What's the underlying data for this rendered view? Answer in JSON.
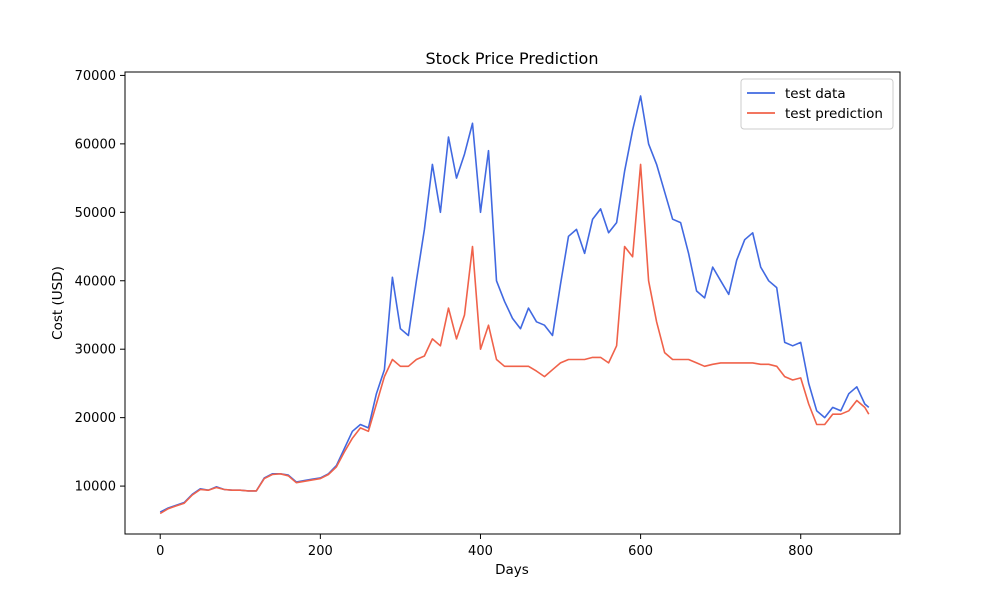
{
  "chart_data": {
    "type": "line",
    "title": "Stock Price Prediction",
    "xlabel": "Days",
    "ylabel": "Cost (USD)",
    "xlim": [
      -44,
      924
    ],
    "ylim": [
      3000,
      70500
    ],
    "xticks": [
      0,
      200,
      400,
      600,
      800
    ],
    "yticks": [
      10000,
      20000,
      30000,
      40000,
      50000,
      60000,
      70000
    ],
    "grid": false,
    "legend_position": "top-right",
    "series": [
      {
        "name": "test data",
        "color": "#4169e1",
        "points": [
          [
            0,
            6200
          ],
          [
            10,
            6800
          ],
          [
            20,
            7200
          ],
          [
            30,
            7600
          ],
          [
            40,
            8800
          ],
          [
            50,
            9600
          ],
          [
            60,
            9400
          ],
          [
            70,
            9900
          ],
          [
            80,
            9500
          ],
          [
            90,
            9400
          ],
          [
            100,
            9400
          ],
          [
            110,
            9300
          ],
          [
            120,
            9300
          ],
          [
            130,
            11200
          ],
          [
            140,
            11800
          ],
          [
            150,
            11800
          ],
          [
            160,
            11600
          ],
          [
            170,
            10600
          ],
          [
            180,
            10800
          ],
          [
            190,
            11000
          ],
          [
            200,
            11200
          ],
          [
            210,
            11800
          ],
          [
            220,
            13000
          ],
          [
            230,
            15500
          ],
          [
            240,
            18000
          ],
          [
            250,
            19000
          ],
          [
            260,
            18500
          ],
          [
            270,
            23500
          ],
          [
            280,
            27000
          ],
          [
            290,
            40500
          ],
          [
            300,
            33000
          ],
          [
            310,
            32000
          ],
          [
            320,
            40000
          ],
          [
            330,
            47500
          ],
          [
            340,
            57000
          ],
          [
            350,
            50000
          ],
          [
            360,
            61000
          ],
          [
            370,
            55000
          ],
          [
            380,
            58500
          ],
          [
            390,
            63000
          ],
          [
            400,
            50000
          ],
          [
            410,
            59000
          ],
          [
            420,
            40000
          ],
          [
            430,
            37000
          ],
          [
            440,
            34500
          ],
          [
            450,
            33000
          ],
          [
            460,
            36000
          ],
          [
            470,
            34000
          ],
          [
            480,
            33500
          ],
          [
            490,
            32000
          ],
          [
            500,
            39500
          ],
          [
            510,
            46500
          ],
          [
            520,
            47500
          ],
          [
            530,
            44000
          ],
          [
            540,
            49000
          ],
          [
            550,
            50500
          ],
          [
            560,
            47000
          ],
          [
            570,
            48500
          ],
          [
            580,
            56000
          ],
          [
            590,
            62000
          ],
          [
            600,
            67000
          ],
          [
            610,
            60000
          ],
          [
            620,
            57000
          ],
          [
            630,
            53000
          ],
          [
            640,
            49000
          ],
          [
            650,
            48500
          ],
          [
            660,
            44000
          ],
          [
            670,
            38500
          ],
          [
            680,
            37500
          ],
          [
            690,
            42000
          ],
          [
            700,
            40000
          ],
          [
            710,
            38000
          ],
          [
            720,
            43000
          ],
          [
            730,
            46000
          ],
          [
            740,
            47000
          ],
          [
            750,
            42000
          ],
          [
            760,
            40000
          ],
          [
            770,
            39000
          ],
          [
            780,
            31000
          ],
          [
            790,
            30500
          ],
          [
            800,
            31000
          ],
          [
            810,
            25000
          ],
          [
            820,
            21000
          ],
          [
            830,
            20000
          ],
          [
            840,
            21500
          ],
          [
            850,
            21000
          ],
          [
            860,
            23500
          ],
          [
            870,
            24500
          ],
          [
            880,
            22000
          ],
          [
            885,
            21500
          ]
        ]
      },
      {
        "name": "test prediction",
        "color": "#f0624a",
        "points": [
          [
            0,
            6000
          ],
          [
            10,
            6700
          ],
          [
            20,
            7100
          ],
          [
            30,
            7500
          ],
          [
            40,
            8700
          ],
          [
            50,
            9500
          ],
          [
            60,
            9400
          ],
          [
            70,
            9800
          ],
          [
            80,
            9500
          ],
          [
            90,
            9400
          ],
          [
            100,
            9400
          ],
          [
            110,
            9300
          ],
          [
            120,
            9300
          ],
          [
            130,
            11100
          ],
          [
            140,
            11700
          ],
          [
            150,
            11800
          ],
          [
            160,
            11500
          ],
          [
            170,
            10500
          ],
          [
            180,
            10700
          ],
          [
            190,
            10900
          ],
          [
            200,
            11100
          ],
          [
            210,
            11700
          ],
          [
            220,
            12800
          ],
          [
            230,
            15000
          ],
          [
            240,
            17000
          ],
          [
            250,
            18500
          ],
          [
            260,
            18000
          ],
          [
            270,
            22000
          ],
          [
            280,
            26000
          ],
          [
            290,
            28500
          ],
          [
            300,
            27500
          ],
          [
            310,
            27500
          ],
          [
            320,
            28500
          ],
          [
            330,
            29000
          ],
          [
            340,
            31500
          ],
          [
            350,
            30500
          ],
          [
            360,
            36000
          ],
          [
            370,
            31500
          ],
          [
            380,
            35000
          ],
          [
            390,
            45000
          ],
          [
            400,
            30000
          ],
          [
            410,
            33500
          ],
          [
            420,
            28500
          ],
          [
            430,
            27500
          ],
          [
            440,
            27500
          ],
          [
            450,
            27500
          ],
          [
            460,
            27500
          ],
          [
            470,
            26800
          ],
          [
            480,
            26000
          ],
          [
            490,
            27000
          ],
          [
            500,
            28000
          ],
          [
            510,
            28500
          ],
          [
            520,
            28500
          ],
          [
            530,
            28500
          ],
          [
            540,
            28800
          ],
          [
            550,
            28800
          ],
          [
            560,
            28000
          ],
          [
            570,
            30500
          ],
          [
            580,
            45000
          ],
          [
            590,
            43500
          ],
          [
            600,
            57000
          ],
          [
            610,
            40000
          ],
          [
            620,
            34000
          ],
          [
            630,
            29500
          ],
          [
            640,
            28500
          ],
          [
            650,
            28500
          ],
          [
            660,
            28500
          ],
          [
            670,
            28000
          ],
          [
            680,
            27500
          ],
          [
            690,
            27800
          ],
          [
            700,
            28000
          ],
          [
            710,
            28000
          ],
          [
            720,
            28000
          ],
          [
            730,
            28000
          ],
          [
            740,
            28000
          ],
          [
            750,
            27800
          ],
          [
            760,
            27800
          ],
          [
            770,
            27500
          ],
          [
            780,
            26000
          ],
          [
            790,
            25500
          ],
          [
            800,
            25800
          ],
          [
            810,
            22000
          ],
          [
            820,
            19000
          ],
          [
            830,
            19000
          ],
          [
            840,
            20500
          ],
          [
            850,
            20500
          ],
          [
            860,
            21000
          ],
          [
            870,
            22500
          ],
          [
            880,
            21500
          ],
          [
            885,
            20500
          ]
        ]
      }
    ]
  }
}
